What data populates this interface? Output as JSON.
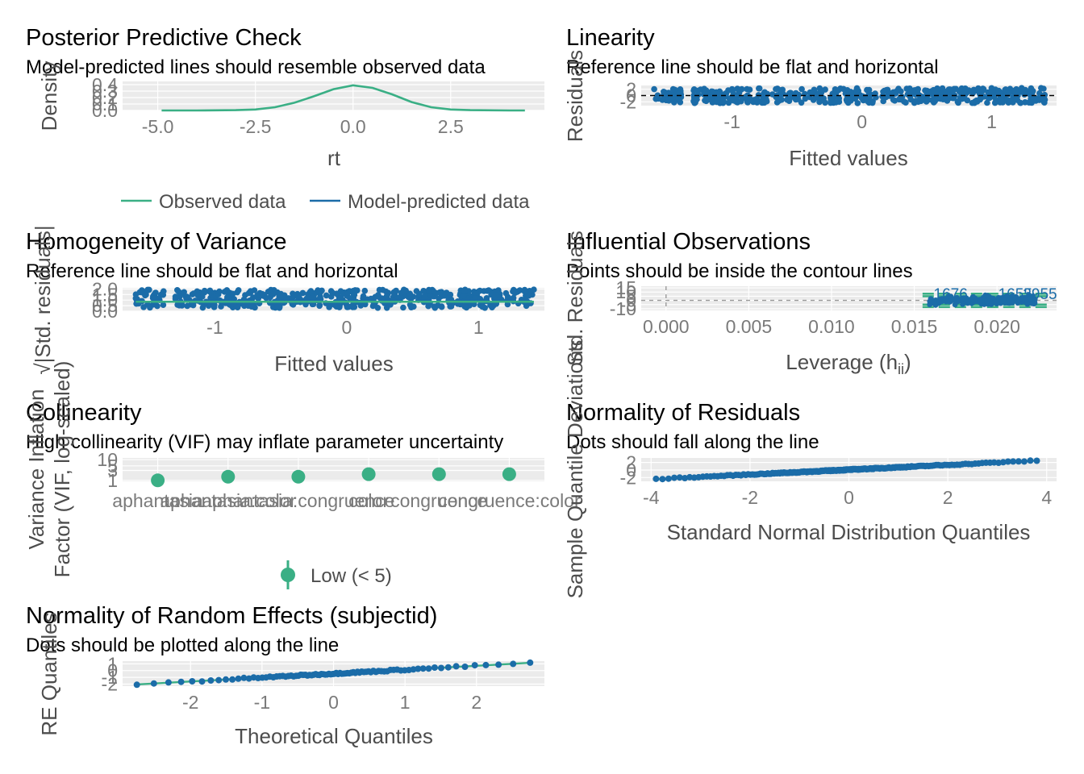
{
  "colors": {
    "green": "#3aaf85",
    "blue": "#1b6ca8",
    "panel_bg": "#ebebeb",
    "grid": "#ffffff",
    "tick_text": "#7a7a7a",
    "axis_title": "#4d4d4d"
  },
  "chart_data": [
    {
      "id": "ppc",
      "type": "line",
      "title": "Posterior Predictive Check",
      "subtitle": "Model-predicted lines should resemble observed data",
      "xlabel": "rt",
      "ylabel": "Density",
      "xlim": [
        -5.9,
        4.9
      ],
      "ylim": [
        0,
        0.45
      ],
      "xticks": [
        -5.0,
        -2.5,
        0.0,
        2.5
      ],
      "xtick_labels": [
        "-5.0",
        "-2.5",
        "0.0",
        "2.5"
      ],
      "yticks": [
        0.0,
        0.1,
        0.2,
        0.3,
        0.4
      ],
      "ytick_labels": [
        "0.0",
        "0.1",
        "0.2",
        "0.3",
        "0.4"
      ],
      "series": [
        {
          "name": "Observed data",
          "color": "#3aaf85",
          "x": [
            -4.9,
            -4,
            -3,
            -2.5,
            -2,
            -1.5,
            -1,
            -0.5,
            0,
            0.5,
            1,
            1.5,
            2,
            2.5,
            3,
            4,
            4.4
          ],
          "y": [
            0.0,
            0.0,
            0.005,
            0.015,
            0.05,
            0.12,
            0.22,
            0.33,
            0.39,
            0.35,
            0.25,
            0.13,
            0.05,
            0.015,
            0.005,
            0.0,
            0.0
          ]
        },
        {
          "name": "Model-predicted data",
          "color": "#1b6ca8",
          "x": [],
          "y": []
        }
      ],
      "legend": {
        "position": "bottom",
        "items": [
          "Observed data",
          "Model-predicted data"
        ]
      }
    },
    {
      "id": "linearity",
      "type": "scatter",
      "title": "Linearity",
      "subtitle": "Reference line should be flat and horizontal",
      "xlabel": "Fitted values",
      "ylabel": "Residuals",
      "xlim": [
        -1.7,
        1.5
      ],
      "ylim": [
        -3.2,
        3.2
      ],
      "xticks": [
        -1,
        0,
        1
      ],
      "xtick_labels": [
        "-1",
        "0",
        "1"
      ],
      "yticks": [
        -2,
        0,
        2
      ],
      "ytick_labels": [
        "-2",
        "0",
        "2"
      ],
      "x_segments": [
        [
          -1.6,
          -1.38
        ],
        [
          -1.3,
          1.42
        ]
      ],
      "y_range": [
        -2.4,
        2.4
      ],
      "hline": 0
    },
    {
      "id": "homogeneity",
      "type": "scatter",
      "title": "Homogeneity of Variance",
      "subtitle": "Reference line should be flat and horizontal",
      "xlabel": "Fitted values",
      "ylabel": "√|Std. residuals|",
      "xlim": [
        -1.7,
        1.5
      ],
      "ylim": [
        0,
        2.1
      ],
      "xticks": [
        -1,
        0,
        1
      ],
      "xtick_labels": [
        "-1",
        "0",
        "1"
      ],
      "yticks": [
        0.0,
        0.5,
        1.0,
        1.5,
        2.0
      ],
      "ytick_labels": [
        "0.0",
        "0.5",
        "1.0",
        "1.5",
        "2.0"
      ],
      "x_segments": [
        [
          -1.6,
          -1.38
        ],
        [
          -1.3,
          1.42
        ]
      ],
      "y_range": [
        0.3,
        1.95
      ],
      "smooth_y": 0.85
    },
    {
      "id": "influential",
      "type": "scatter",
      "title": "Influential Observations",
      "subtitle": "Points should be inside the contour lines",
      "xlabel": "Leverage (hii)",
      "xlabel_main": "Leverage (h",
      "xlabel_sub": "ii",
      "xlabel_close": ")",
      "ylabel": "Std. Residuals",
      "xlim": [
        -0.0015,
        0.0236
      ],
      "ylim": [
        -12,
        17
      ],
      "xticks": [
        0.0,
        0.005,
        0.01,
        0.015,
        0.02
      ],
      "xtick_labels": [
        "0.000",
        "0.005",
        "0.010",
        "0.015",
        "0.020"
      ],
      "yticks": [
        -10,
        -5,
        0,
        5,
        10,
        15
      ],
      "ytick_labels": [
        "-10",
        "-5",
        "0",
        "5",
        "10",
        "15"
      ],
      "point_labels": [
        "1676",
        "1655",
        "2955"
      ]
    },
    {
      "id": "collinearity",
      "type": "scatter",
      "title": "Collinearity",
      "subtitle": "High collinearity (VIF) may inflate parameter uncertainty",
      "xlabel": "",
      "ylabel": "Variance Inflation Factor (VIF, log-scaled)",
      "ylabel_line1": "Variance Inflation",
      "ylabel_line2": "Factor (VIF, log-scaled)",
      "log_y": true,
      "ylim": [
        0.9,
        12
      ],
      "yticks": [
        1,
        3,
        5,
        10
      ],
      "ytick_labels": [
        "1",
        "3",
        "5",
        "10"
      ],
      "categories": [
        "aphantasia",
        "aphantasia:color",
        "aphantasia:congruence",
        "color",
        "congruence",
        "congruence:color"
      ],
      "values": [
        1.0,
        1.5,
        1.5,
        2.0,
        2.0,
        2.0
      ],
      "legend": {
        "position": "bottom",
        "items": [
          "Low (< 5)"
        ]
      }
    },
    {
      "id": "normres",
      "type": "scatter",
      "title": "Normality of Residuals",
      "subtitle": "Dots should fall along the line",
      "xlabel": "Standard Normal Distribution Quantiles",
      "ylabel": "Sample Quantile Deviations",
      "xlim": [
        -4.2,
        4.2
      ],
      "ylim": [
        -3,
        3.2
      ],
      "xticks": [
        -4,
        -2,
        0,
        2,
        4
      ],
      "xtick_labels": [
        "-4",
        "-2",
        "0",
        "2",
        "4"
      ],
      "yticks": [
        -2,
        0,
        2
      ],
      "ytick_labels": [
        "-2",
        "0",
        "2"
      ],
      "line": [
        [
          -3.9,
          -2.4
        ],
        [
          3.8,
          2.5
        ]
      ]
    },
    {
      "id": "normre",
      "type": "scatter",
      "title": "Normality of Random Effects (subjectid)",
      "subtitle": "Dots should be plotted along the line",
      "xlabel": "Theoretical Quantiles",
      "ylabel": "RE Quantiles",
      "xlim": [
        -2.95,
        2.95
      ],
      "ylim": [
        -2.3,
        1.4
      ],
      "xticks": [
        -2,
        -1,
        0,
        1,
        2
      ],
      "xtick_labels": [
        "-2",
        "-1",
        "0",
        "1",
        "2"
      ],
      "yticks": [
        -2,
        -1,
        0,
        1
      ],
      "ytick_labels": [
        "-2",
        "-1",
        "0",
        "1"
      ],
      "line": [
        [
          -2.75,
          -2.05
        ],
        [
          2.75,
          1.15
        ]
      ]
    }
  ]
}
